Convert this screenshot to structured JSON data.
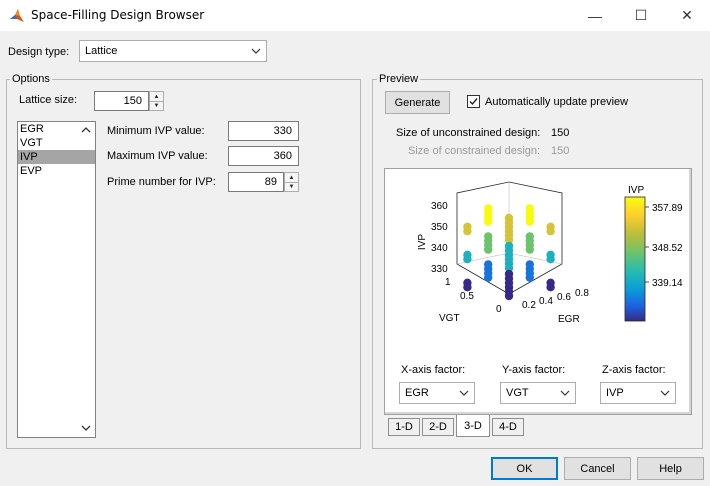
{
  "window": {
    "title": "Space-Filling Design Browser",
    "minimize_glyph": "—",
    "maximize_glyph": "☐",
    "close_glyph": "✕"
  },
  "design_type": {
    "label": "Design type:",
    "value": "Lattice"
  },
  "options": {
    "title": "Options",
    "lattice_size_label": "Lattice size:",
    "lattice_size_value": "150",
    "factors": [
      "EGR",
      "VGT",
      "IVP",
      "EVP"
    ],
    "selected_factor": "IVP",
    "min_label": "Minimum IVP value:",
    "min_value": "330",
    "max_label": "Maximum IVP value:",
    "max_value": "360",
    "prime_label": "Prime number for IVP:",
    "prime_value": "89"
  },
  "preview": {
    "title": "Preview",
    "generate_label": "Generate",
    "auto_update_label": "Automatically update preview",
    "auto_update_checked": true,
    "unconstrained_label": "Size of unconstrained design:",
    "unconstrained_value": "150",
    "constrained_label": "Size of constrained design:",
    "constrained_value": "150",
    "plot": {
      "z_axis_label": "IVP",
      "x_axis_label": "EGR",
      "y_axis_label": "VGT",
      "z_ticks": [
        "360",
        "350",
        "340",
        "330"
      ],
      "y_ticks": [
        "1",
        "0.5",
        "0"
      ],
      "x_ticks": [
        "0.2",
        "0.4",
        "0.6",
        "0.8"
      ],
      "colorbar_title": "IVP",
      "colorbar_ticks": [
        "357.89",
        "348.52",
        "339.14"
      ]
    },
    "x_factor_label": "X-axis factor:",
    "x_factor_value": "EGR",
    "y_factor_label": "Y-axis factor:",
    "y_factor_value": "VGT",
    "z_factor_label": "Z-axis factor:",
    "z_factor_value": "IVP",
    "tabs": [
      "1-D",
      "2-D",
      "3-D",
      "4-D"
    ],
    "active_tab": "3-D"
  },
  "footer": {
    "ok_label": "OK",
    "cancel_label": "Cancel",
    "help_label": "Help"
  },
  "colors": {
    "accent": "#0078d7",
    "selection": "#a5a5a5",
    "colormap_top": "#f9fb0e",
    "colormap_mid": "#26bcb2",
    "colormap_bottom": "#352a87"
  }
}
